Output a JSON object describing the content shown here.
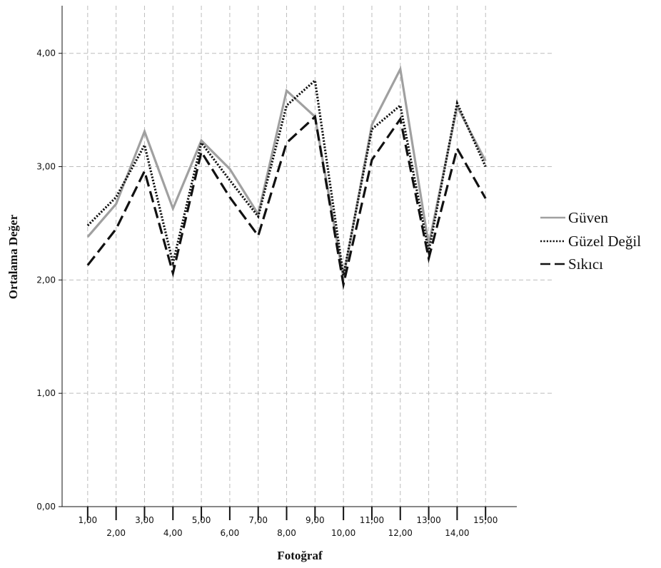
{
  "chart_data": {
    "type": "line",
    "title": "",
    "xlabel": "Fotoğraf",
    "ylabel": "Ortalama Değer",
    "x": [
      1,
      2,
      3,
      4,
      5,
      6,
      7,
      8,
      9,
      10,
      11,
      12,
      13,
      14,
      15
    ],
    "x_tick_labels": [
      "1,00",
      "2,00",
      "3,00",
      "4,00",
      "5,00",
      "6,00",
      "7,00",
      "8,00",
      "9,00",
      "10,00",
      "11,00",
      "12,00",
      "13,00",
      "14,00",
      "15,00"
    ],
    "y_tick_labels": [
      "0,00",
      "1,00",
      "2,00",
      "3,00",
      "4,00"
    ],
    "y_ticks": [
      0,
      1,
      2,
      3,
      4
    ],
    "xlim": [
      0.1,
      16.1
    ],
    "ylim": [
      0,
      4.42
    ],
    "grid": true,
    "legend_position": "right",
    "series": [
      {
        "name": "Güven",
        "color": "#a0a0a0",
        "style": "solid",
        "values": [
          2.38,
          2.67,
          3.31,
          2.63,
          3.23,
          2.98,
          2.58,
          3.67,
          3.44,
          2.02,
          3.37,
          3.86,
          2.31,
          3.53,
          3.05
        ]
      },
      {
        "name": "Güzel Değil",
        "color": "#111111",
        "style": "dotted",
        "values": [
          2.48,
          2.73,
          3.19,
          2.15,
          3.21,
          2.88,
          2.56,
          3.54,
          3.76,
          2.04,
          3.33,
          3.54,
          2.25,
          3.56,
          3.0
        ]
      },
      {
        "name": "Sıkıcı",
        "color": "#111111",
        "style": "dashed",
        "values": [
          2.13,
          2.45,
          2.96,
          2.06,
          3.13,
          2.73,
          2.39,
          3.21,
          3.44,
          1.96,
          3.06,
          3.42,
          2.19,
          3.16,
          2.72
        ]
      }
    ]
  }
}
